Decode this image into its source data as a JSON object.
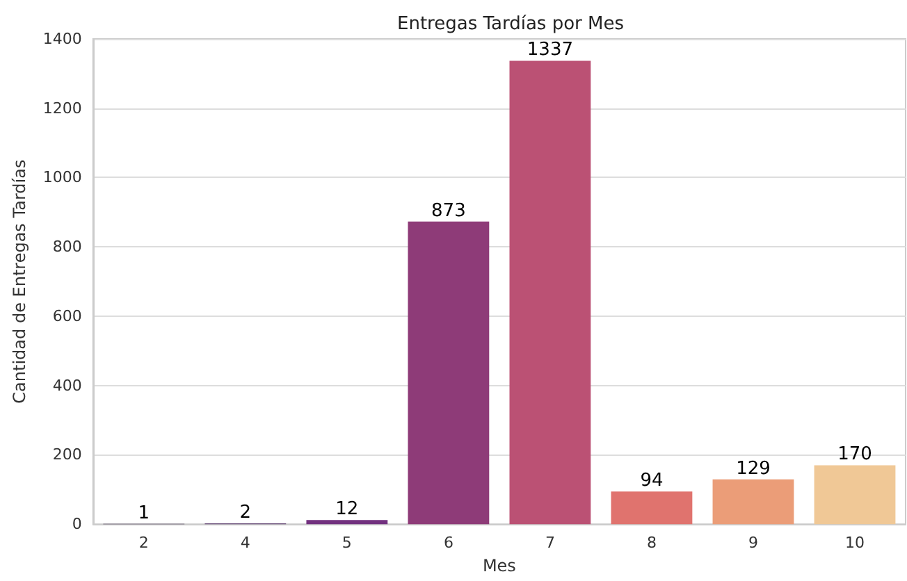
{
  "chart_data": {
    "type": "bar",
    "title": "Entregas Tardías por Mes",
    "xlabel": "Mes",
    "ylabel": "Cantidad de Entregas Tardías",
    "categories": [
      "2",
      "4",
      "5",
      "6",
      "7",
      "8",
      "9",
      "10"
    ],
    "values": [
      1,
      2,
      12,
      873,
      1337,
      94,
      129,
      170
    ],
    "colors": [
      "#2d1b3f",
      "#4e2a62",
      "#72317f",
      "#8e3b78",
      "#bb5174",
      "#e0736e",
      "#eb9d78",
      "#f0c896"
    ],
    "ylim": [
      0,
      1400
    ],
    "yticks": [
      0,
      200,
      400,
      600,
      800,
      1000,
      1200,
      1400
    ],
    "grid": "y",
    "data_labels": true
  }
}
